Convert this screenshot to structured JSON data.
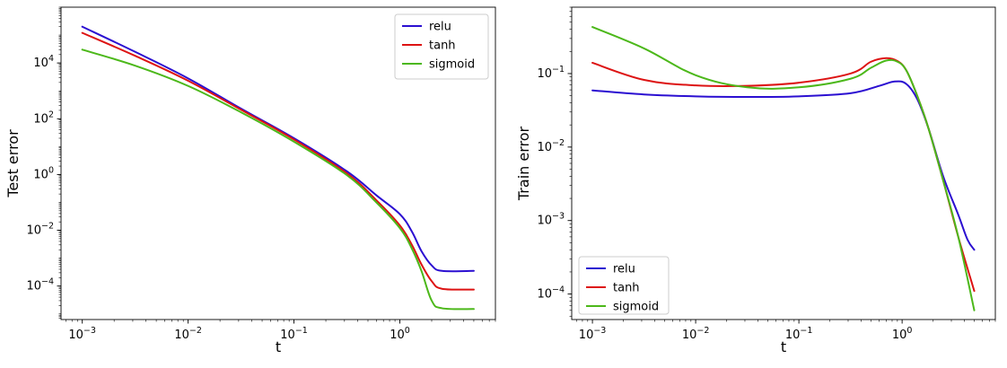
{
  "colors": {
    "relu": "#2b0fd1",
    "tanh": "#dd1313",
    "sigmoid": "#4cb81a"
  },
  "chart_data": [
    {
      "type": "line",
      "xlabel": "t",
      "ylabel": "Test error",
      "xscale": "log",
      "yscale": "log",
      "xlim": [
        0.00063,
        8.0
      ],
      "ylim": [
        6.3e-06,
        1000000
      ],
      "legend_location": "top-right",
      "x_ticks": [
        {
          "base": "10",
          "exp": "−3",
          "value": 0.001
        },
        {
          "base": "10",
          "exp": "−2",
          "value": 0.01
        },
        {
          "base": "10",
          "exp": "−1",
          "value": 0.1
        },
        {
          "base": "10",
          "exp": "0",
          "value": 1
        }
      ],
      "y_ticks": [
        {
          "base": "10",
          "exp": "−4",
          "value": 0.0001
        },
        {
          "base": "10",
          "exp": "−2",
          "value": 0.01
        },
        {
          "base": "10",
          "exp": "0",
          "value": 1
        },
        {
          "base": "10",
          "exp": "2",
          "value": 100
        },
        {
          "base": "10",
          "exp": "4",
          "value": 10000
        }
      ],
      "series": [
        {
          "name": "relu",
          "color": "#2b0fd1",
          "x": [
            0.001,
            0.00316,
            0.01,
            0.0316,
            0.1,
            0.316,
            0.6,
            1.0,
            1.3,
            1.6,
            2.0,
            2.5,
            5.0
          ],
          "y": [
            200000,
            25000,
            2800,
            230,
            20,
            1.3,
            0.18,
            0.038,
            0.009,
            0.0018,
            0.00055,
            0.00035,
            0.00035
          ]
        },
        {
          "name": "tanh",
          "color": "#dd1313",
          "x": [
            0.001,
            0.00316,
            0.01,
            0.0316,
            0.1,
            0.316,
            0.6,
            1.0,
            1.3,
            1.6,
            2.0,
            2.5,
            5.0
          ],
          "y": [
            120000,
            18000,
            2300,
            210,
            18,
            1.1,
            0.12,
            0.015,
            0.003,
            0.0006,
            0.00015,
            8e-05,
            7.5e-05
          ]
        },
        {
          "name": "sigmoid",
          "color": "#4cb81a",
          "x": [
            0.001,
            0.00316,
            0.01,
            0.0316,
            0.1,
            0.316,
            0.6,
            1.0,
            1.3,
            1.6,
            2.0,
            2.5,
            5.0
          ],
          "y": [
            30000,
            8000,
            1500,
            170,
            15,
            0.95,
            0.1,
            0.012,
            0.0022,
            0.00035,
            3e-05,
            1.6e-05,
            1.5e-05
          ]
        }
      ]
    },
    {
      "type": "line",
      "xlabel": "t",
      "ylabel": "Train error",
      "xscale": "log",
      "yscale": "log",
      "xlim": [
        0.00063,
        8.0
      ],
      "ylim": [
        4.5e-05,
        0.8
      ],
      "legend_location": "bottom-left",
      "x_ticks": [
        {
          "base": "10",
          "exp": "−3",
          "value": 0.001
        },
        {
          "base": "10",
          "exp": "−2",
          "value": 0.01
        },
        {
          "base": "10",
          "exp": "−1",
          "value": 0.1
        },
        {
          "base": "10",
          "exp": "0",
          "value": 1
        }
      ],
      "y_ticks": [
        {
          "base": "10",
          "exp": "−4",
          "value": 0.0001
        },
        {
          "base": "10",
          "exp": "−3",
          "value": 0.001
        },
        {
          "base": "10",
          "exp": "−2",
          "value": 0.01
        },
        {
          "base": "10",
          "exp": "−1",
          "value": 0.1
        }
      ],
      "series": [
        {
          "name": "relu",
          "color": "#2b0fd1",
          "x": [
            0.001,
            0.00316,
            0.01,
            0.0316,
            0.1,
            0.316,
            0.6,
            0.85,
            1.1,
            1.4,
            1.8,
            2.5,
            3.5,
            4.3,
            5.0
          ],
          "y": [
            0.059,
            0.052,
            0.049,
            0.048,
            0.049,
            0.054,
            0.068,
            0.078,
            0.072,
            0.045,
            0.018,
            0.004,
            0.0012,
            0.00055,
            0.0004
          ]
        },
        {
          "name": "tanh",
          "color": "#dd1313",
          "x": [
            0.001,
            0.00316,
            0.01,
            0.0316,
            0.1,
            0.316,
            0.5,
            0.7,
            0.9,
            1.1,
            1.4,
            1.8,
            2.5,
            3.5,
            5.0
          ],
          "y": [
            0.14,
            0.082,
            0.069,
            0.068,
            0.075,
            0.1,
            0.145,
            0.162,
            0.148,
            0.11,
            0.05,
            0.018,
            0.0035,
            0.0006,
            0.00011
          ]
        },
        {
          "name": "sigmoid",
          "color": "#4cb81a",
          "x": [
            0.001,
            0.00316,
            0.01,
            0.0316,
            0.1,
            0.316,
            0.5,
            0.7,
            0.9,
            1.1,
            1.4,
            1.8,
            2.5,
            3.5,
            5.0
          ],
          "y": [
            0.43,
            0.22,
            0.095,
            0.065,
            0.065,
            0.085,
            0.12,
            0.15,
            0.145,
            0.11,
            0.05,
            0.018,
            0.0035,
            0.0006,
            6e-05
          ]
        }
      ]
    }
  ]
}
